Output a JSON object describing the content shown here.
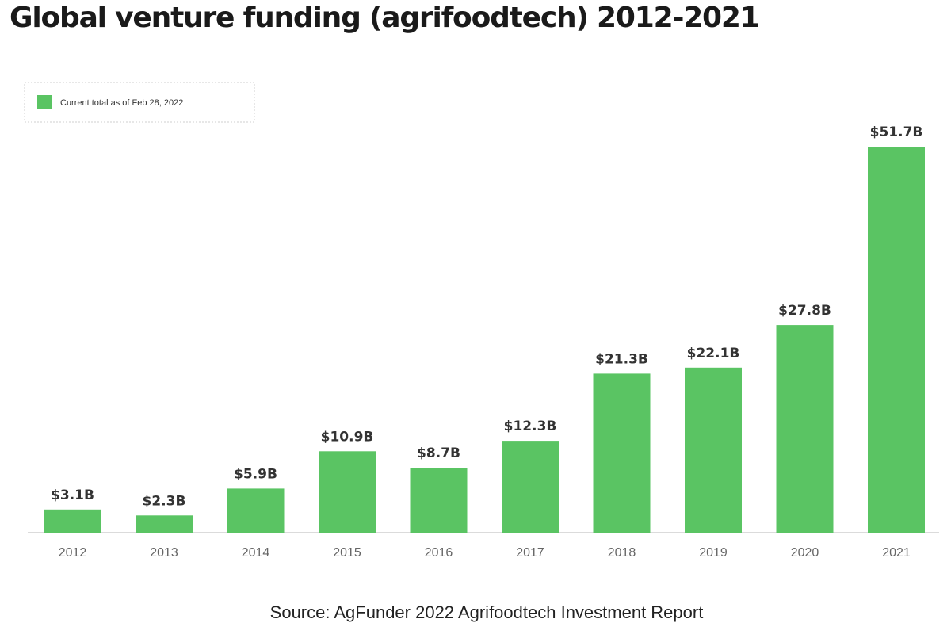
{
  "chart_data": {
    "type": "bar",
    "title": "Global venture funding (agrifoodtech) 2012-2021",
    "categories": [
      "2012",
      "2013",
      "2014",
      "2015",
      "2016",
      "2017",
      "2018",
      "2019",
      "2020",
      "2021"
    ],
    "series": [
      {
        "name": "Current total as of Feb 28, 2022",
        "values": [
          3.1,
          2.3,
          5.9,
          10.9,
          8.7,
          12.3,
          21.3,
          22.1,
          27.8,
          51.7
        ],
        "labels": [
          "$3.1B",
          "$2.3B",
          "$5.9B",
          "$10.9B",
          "$8.7B",
          "$12.3B",
          "$21.3B",
          "$22.1B",
          "$27.8B",
          "$51.7B"
        ],
        "color": "#5ac463"
      }
    ],
    "xlabel": "",
    "ylabel": "",
    "ylim": [
      0,
      51.7
    ],
    "grid": false,
    "legend_position": "top-left"
  },
  "source": "Source: AgFunder 2022 Agrifoodtech Investment Report",
  "colors": {
    "bar": "#5ac463",
    "axis": "#cfcfcf",
    "label": "#333333",
    "tick": "#666666",
    "legend_border": "#cfcfcf"
  }
}
